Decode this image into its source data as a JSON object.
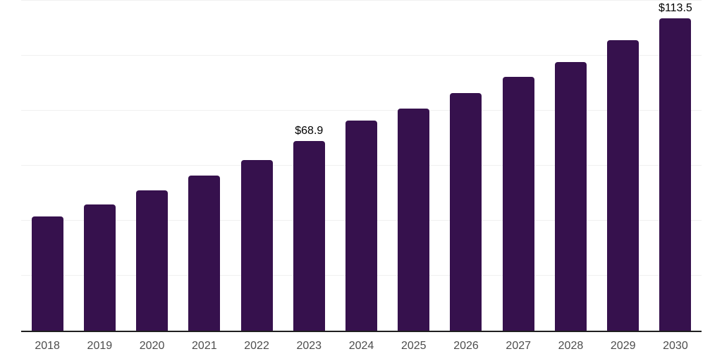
{
  "chart_data": {
    "type": "bar",
    "title": "",
    "xlabel": "",
    "ylabel": "",
    "categories": [
      "2018",
      "2019",
      "2020",
      "2021",
      "2022",
      "2023",
      "2024",
      "2025",
      "2026",
      "2027",
      "2028",
      "2029",
      "2030"
    ],
    "values": [
      41.6,
      46.0,
      51.0,
      56.3,
      62.1,
      68.9,
      76.4,
      80.8,
      86.3,
      92.2,
      97.6,
      105.6,
      113.5
    ],
    "value_labels": [
      "",
      "",
      "",
      "",
      "",
      "$68.9",
      "",
      "",
      "",
      "",
      "",
      "",
      "$113.5"
    ],
    "ylim": [
      0,
      120
    ],
    "gridline_step": 20,
    "grid": true,
    "legend": false,
    "y_axis_labels_visible": false,
    "colors": {
      "bar": "#36114d",
      "axis_line": "#1f1f1f",
      "gridline": "#f0f0f0",
      "tick_label": "#4d4d4d",
      "data_label": "#000000",
      "background": "#ffffff"
    }
  }
}
